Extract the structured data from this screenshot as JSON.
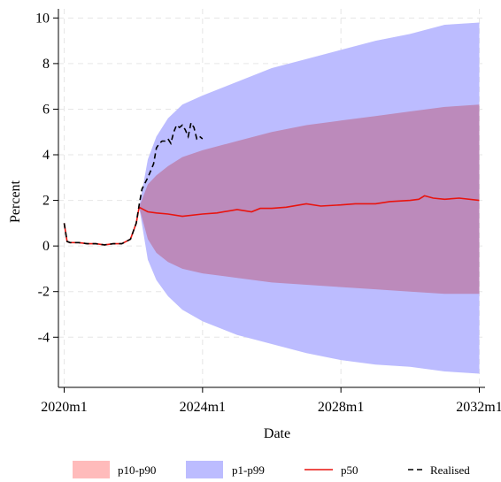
{
  "chart_data": {
    "type": "area",
    "xlabel": "Date",
    "ylabel": "Percent",
    "x_ticks": [
      "2020m1",
      "2024m1",
      "2028m1",
      "2032m1"
    ],
    "y_ticks": [
      "-4",
      "-2",
      "0",
      "2",
      "4",
      "6",
      "8",
      "10"
    ],
    "xlim": [
      "2019m11",
      "2032m3"
    ],
    "ylim": [
      -6.2,
      10.4
    ],
    "grid": true,
    "legend_position": "bottom",
    "colors": {
      "p10_p90": "#ffbbbb",
      "p1_p99": "#bcbcff",
      "p50": "#e8140f",
      "realised": "#000000"
    },
    "legend": [
      {
        "key": "p10_p90",
        "label": "p10-p90"
      },
      {
        "key": "p1_p99",
        "label": "p1-p99"
      },
      {
        "key": "p50",
        "label": "p50"
      },
      {
        "key": "realised",
        "label": "Realised"
      }
    ],
    "series": [
      {
        "name": "p50",
        "x": [
          "2020m1",
          "2020m2",
          "2020m3",
          "2020m6",
          "2020m9",
          "2020m12",
          "2021m3",
          "2021m6",
          "2021m9",
          "2021m12",
          "2022m2",
          "2022m3",
          "2022m6",
          "2022m9",
          "2023m1",
          "2023m6",
          "2024m1",
          "2024m6",
          "2025m1",
          "2025m6",
          "2025m9",
          "2026m1",
          "2026m6",
          "2027m1",
          "2027m6",
          "2028m1",
          "2028m6",
          "2029m1",
          "2029m6",
          "2030m1",
          "2030m4",
          "2030m6",
          "2030m9",
          "2031m1",
          "2031m6",
          "2032m1"
        ],
        "values": [
          1.0,
          0.2,
          0.15,
          0.15,
          0.1,
          0.1,
          0.05,
          0.1,
          0.1,
          0.3,
          1.0,
          1.7,
          1.5,
          1.45,
          1.4,
          1.3,
          1.4,
          1.45,
          1.6,
          1.5,
          1.65,
          1.65,
          1.7,
          1.85,
          1.75,
          1.8,
          1.85,
          1.85,
          1.95,
          2.0,
          2.05,
          2.2,
          2.1,
          2.05,
          2.1,
          2.0
        ]
      },
      {
        "name": "p10",
        "x": [
          "2022m3",
          "2022m6",
          "2022m9",
          "2023m1",
          "2023m6",
          "2024m1",
          "2025m1",
          "2026m1",
          "2027m1",
          "2028m1",
          "2029m1",
          "2030m1",
          "2031m1",
          "2032m1"
        ],
        "values": [
          1.7,
          0.3,
          -0.3,
          -0.7,
          -1.0,
          -1.2,
          -1.4,
          -1.6,
          -1.7,
          -1.8,
          -1.9,
          -2.0,
          -2.1,
          -2.1
        ]
      },
      {
        "name": "p90",
        "x": [
          "2022m3",
          "2022m6",
          "2022m9",
          "2023m1",
          "2023m6",
          "2024m1",
          "2025m1",
          "2026m1",
          "2027m1",
          "2028m1",
          "2029m1",
          "2030m1",
          "2031m1",
          "2032m1"
        ],
        "values": [
          1.7,
          2.7,
          3.1,
          3.5,
          3.9,
          4.2,
          4.6,
          5.0,
          5.3,
          5.5,
          5.7,
          5.9,
          6.1,
          6.2
        ]
      },
      {
        "name": "p1",
        "x": [
          "2022m3",
          "2022m6",
          "2022m9",
          "2023m1",
          "2023m6",
          "2024m1",
          "2025m1",
          "2026m1",
          "2027m1",
          "2028m1",
          "2029m1",
          "2030m1",
          "2031m1",
          "2032m1"
        ],
        "values": [
          1.7,
          -0.6,
          -1.5,
          -2.2,
          -2.8,
          -3.3,
          -3.9,
          -4.3,
          -4.7,
          -5.0,
          -5.2,
          -5.3,
          -5.5,
          -5.6
        ]
      },
      {
        "name": "p99",
        "x": [
          "2022m3",
          "2022m6",
          "2022m9",
          "2023m1",
          "2023m6",
          "2024m1",
          "2025m1",
          "2026m1",
          "2027m1",
          "2028m1",
          "2029m1",
          "2030m1",
          "2031m1",
          "2032m1"
        ],
        "values": [
          1.7,
          3.8,
          4.8,
          5.6,
          6.2,
          6.6,
          7.2,
          7.8,
          8.2,
          8.6,
          9.0,
          9.3,
          9.7,
          9.8
        ]
      },
      {
        "name": "Realised",
        "x": [
          "2020m1",
          "2020m2",
          "2020m3",
          "2020m6",
          "2020m9",
          "2020m12",
          "2021m3",
          "2021m6",
          "2021m9",
          "2021m12",
          "2022m2",
          "2022m3",
          "2022m4",
          "2022m6",
          "2022m8",
          "2022m9",
          "2022m10",
          "2022m11",
          "2022m12",
          "2023m1",
          "2023m2",
          "2023m3",
          "2023m4",
          "2023m5",
          "2023m6",
          "2023m7",
          "2023m8",
          "2023m9",
          "2023m10",
          "2023m11",
          "2023m12",
          "2024m1"
        ],
        "values": [
          1.0,
          0.2,
          0.15,
          0.15,
          0.1,
          0.1,
          0.05,
          0.1,
          0.1,
          0.3,
          1.0,
          1.8,
          2.5,
          3.0,
          3.6,
          4.3,
          4.5,
          4.6,
          4.6,
          4.7,
          4.5,
          5.0,
          5.3,
          5.2,
          5.3,
          5.1,
          4.8,
          5.4,
          5.2,
          4.7,
          4.8,
          4.7
        ]
      }
    ]
  }
}
